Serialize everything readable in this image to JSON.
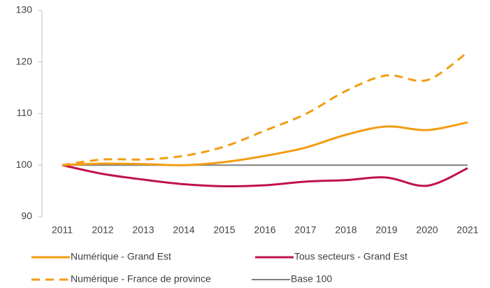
{
  "chart_data": {
    "type": "line",
    "categories": [
      "2011",
      "2012",
      "2013",
      "2014",
      "2015",
      "2016",
      "2017",
      "2018",
      "2019",
      "2020",
      "2021"
    ],
    "series": [
      {
        "name": "Numérique - Grand Est",
        "color": "#f39c12",
        "dash": false,
        "values": [
          100,
          100.3,
          100.2,
          100,
          100.6,
          101.8,
          103.4,
          105.9,
          107.5,
          106.8,
          108.3
        ]
      },
      {
        "name": "Tous secteurs - Grand Est",
        "color": "#c0114f",
        "dash": false,
        "values": [
          100,
          98.3,
          97.2,
          96.3,
          95.9,
          96.1,
          96.8,
          97.1,
          97.6,
          96.0,
          99.4
        ]
      },
      {
        "name": "Numérique - France de province",
        "color": "#f39c12",
        "dash": true,
        "values": [
          100,
          101.1,
          101.1,
          101.8,
          103.6,
          106.7,
          109.9,
          114.4,
          117.4,
          116.5,
          121.9
        ]
      },
      {
        "name": "Base 100",
        "color": "#7f7f7f",
        "dash": false,
        "values": [
          100,
          100,
          100,
          100,
          100,
          100,
          100,
          100,
          100,
          100,
          100
        ]
      }
    ],
    "ylim": [
      90,
      130
    ],
    "yticks": [
      90,
      100,
      110,
      120,
      130
    ],
    "grid": false,
    "legend": "bottom"
  }
}
